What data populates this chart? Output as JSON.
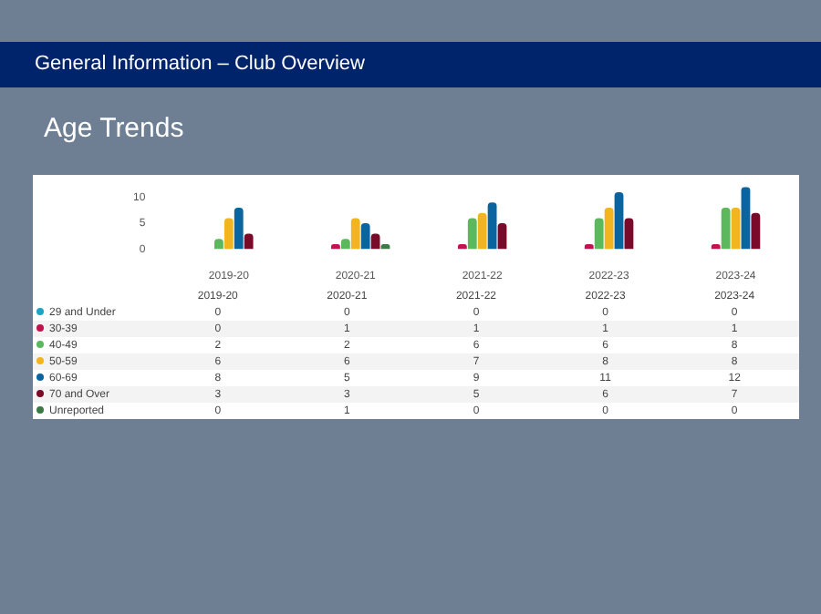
{
  "chart_data": {
    "type": "bar",
    "title": "General Information – Club Overview",
    "subtitle": "Age Trends",
    "categories": [
      "2019-20",
      "2020-21",
      "2021-22",
      "2022-23",
      "2023-24"
    ],
    "series": [
      {
        "name": "29 and Under",
        "color": "#1fa3c4",
        "values": [
          0,
          0,
          0,
          0,
          0
        ]
      },
      {
        "name": "30-39",
        "color": "#c2134f",
        "values": [
          0,
          1,
          1,
          1,
          1
        ]
      },
      {
        "name": "40-49",
        "color": "#5cb85c",
        "values": [
          2,
          2,
          6,
          6,
          8
        ]
      },
      {
        "name": "50-59",
        "color": "#f2b51f",
        "values": [
          6,
          6,
          7,
          8,
          8
        ]
      },
      {
        "name": "60-69",
        "color": "#0a64a0",
        "values": [
          8,
          5,
          9,
          11,
          12
        ]
      },
      {
        "name": "70 and Over",
        "color": "#7a0a2a",
        "values": [
          3,
          3,
          5,
          6,
          7
        ]
      },
      {
        "name": "Unreported",
        "color": "#3b7a45",
        "values": [
          0,
          1,
          0,
          0,
          0
        ]
      }
    ],
    "ylim": [
      0,
      12
    ],
    "yticks": [
      0,
      5,
      10
    ],
    "grid": false,
    "legend": "bottom",
    "data_labels": true
  }
}
